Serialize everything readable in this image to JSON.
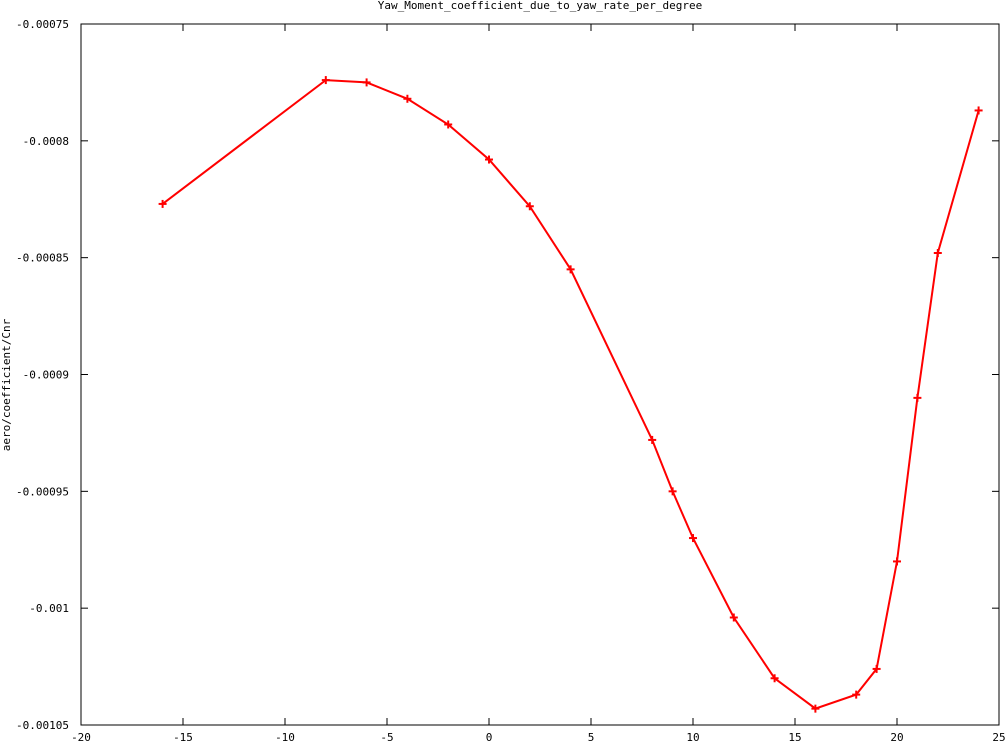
{
  "chart_data": {
    "type": "line",
    "title": "Yaw_Moment_coefficient_due_to_yaw_rate_per_degree",
    "xlabel": "",
    "ylabel": "aero/coefficient/Cnr",
    "xlim": [
      -20,
      25
    ],
    "ylim": [
      -0.00105,
      -0.00075
    ],
    "x_ticks": [
      -20,
      -15,
      -10,
      -5,
      0,
      5,
      10,
      15,
      20,
      25
    ],
    "x_tick_labels": [
      "-20",
      "-15",
      "-10",
      "-5",
      "0",
      "5",
      "10",
      "15",
      "20",
      "25"
    ],
    "y_ticks": [
      -0.00075,
      -0.0008,
      -0.00085,
      -0.0009,
      -0.00095,
      -0.001,
      -0.00105
    ],
    "y_tick_labels": [
      "-0.00075",
      "-0.0008",
      "-0.00085",
      "-0.0009",
      "-0.00095",
      "-0.001",
      "-0.00105"
    ],
    "grid": false,
    "series": [
      {
        "color": "#ff0000",
        "marker": "plus",
        "x": [
          -16,
          -8,
          -6,
          -4,
          -2,
          0,
          2,
          4,
          8,
          9,
          10,
          12,
          14,
          16,
          18,
          19,
          20,
          21,
          22,
          24
        ],
        "y": [
          -0.000827,
          -0.000774,
          -0.000775,
          -0.000782,
          -0.000793,
          -0.000808,
          -0.000828,
          -0.000855,
          -0.000928,
          -0.00095,
          -0.00097,
          -0.001004,
          -0.00103,
          -0.001043,
          -0.001037,
          -0.001026,
          -0.00098,
          -0.00091,
          -0.000848,
          -0.000787
        ]
      }
    ]
  }
}
